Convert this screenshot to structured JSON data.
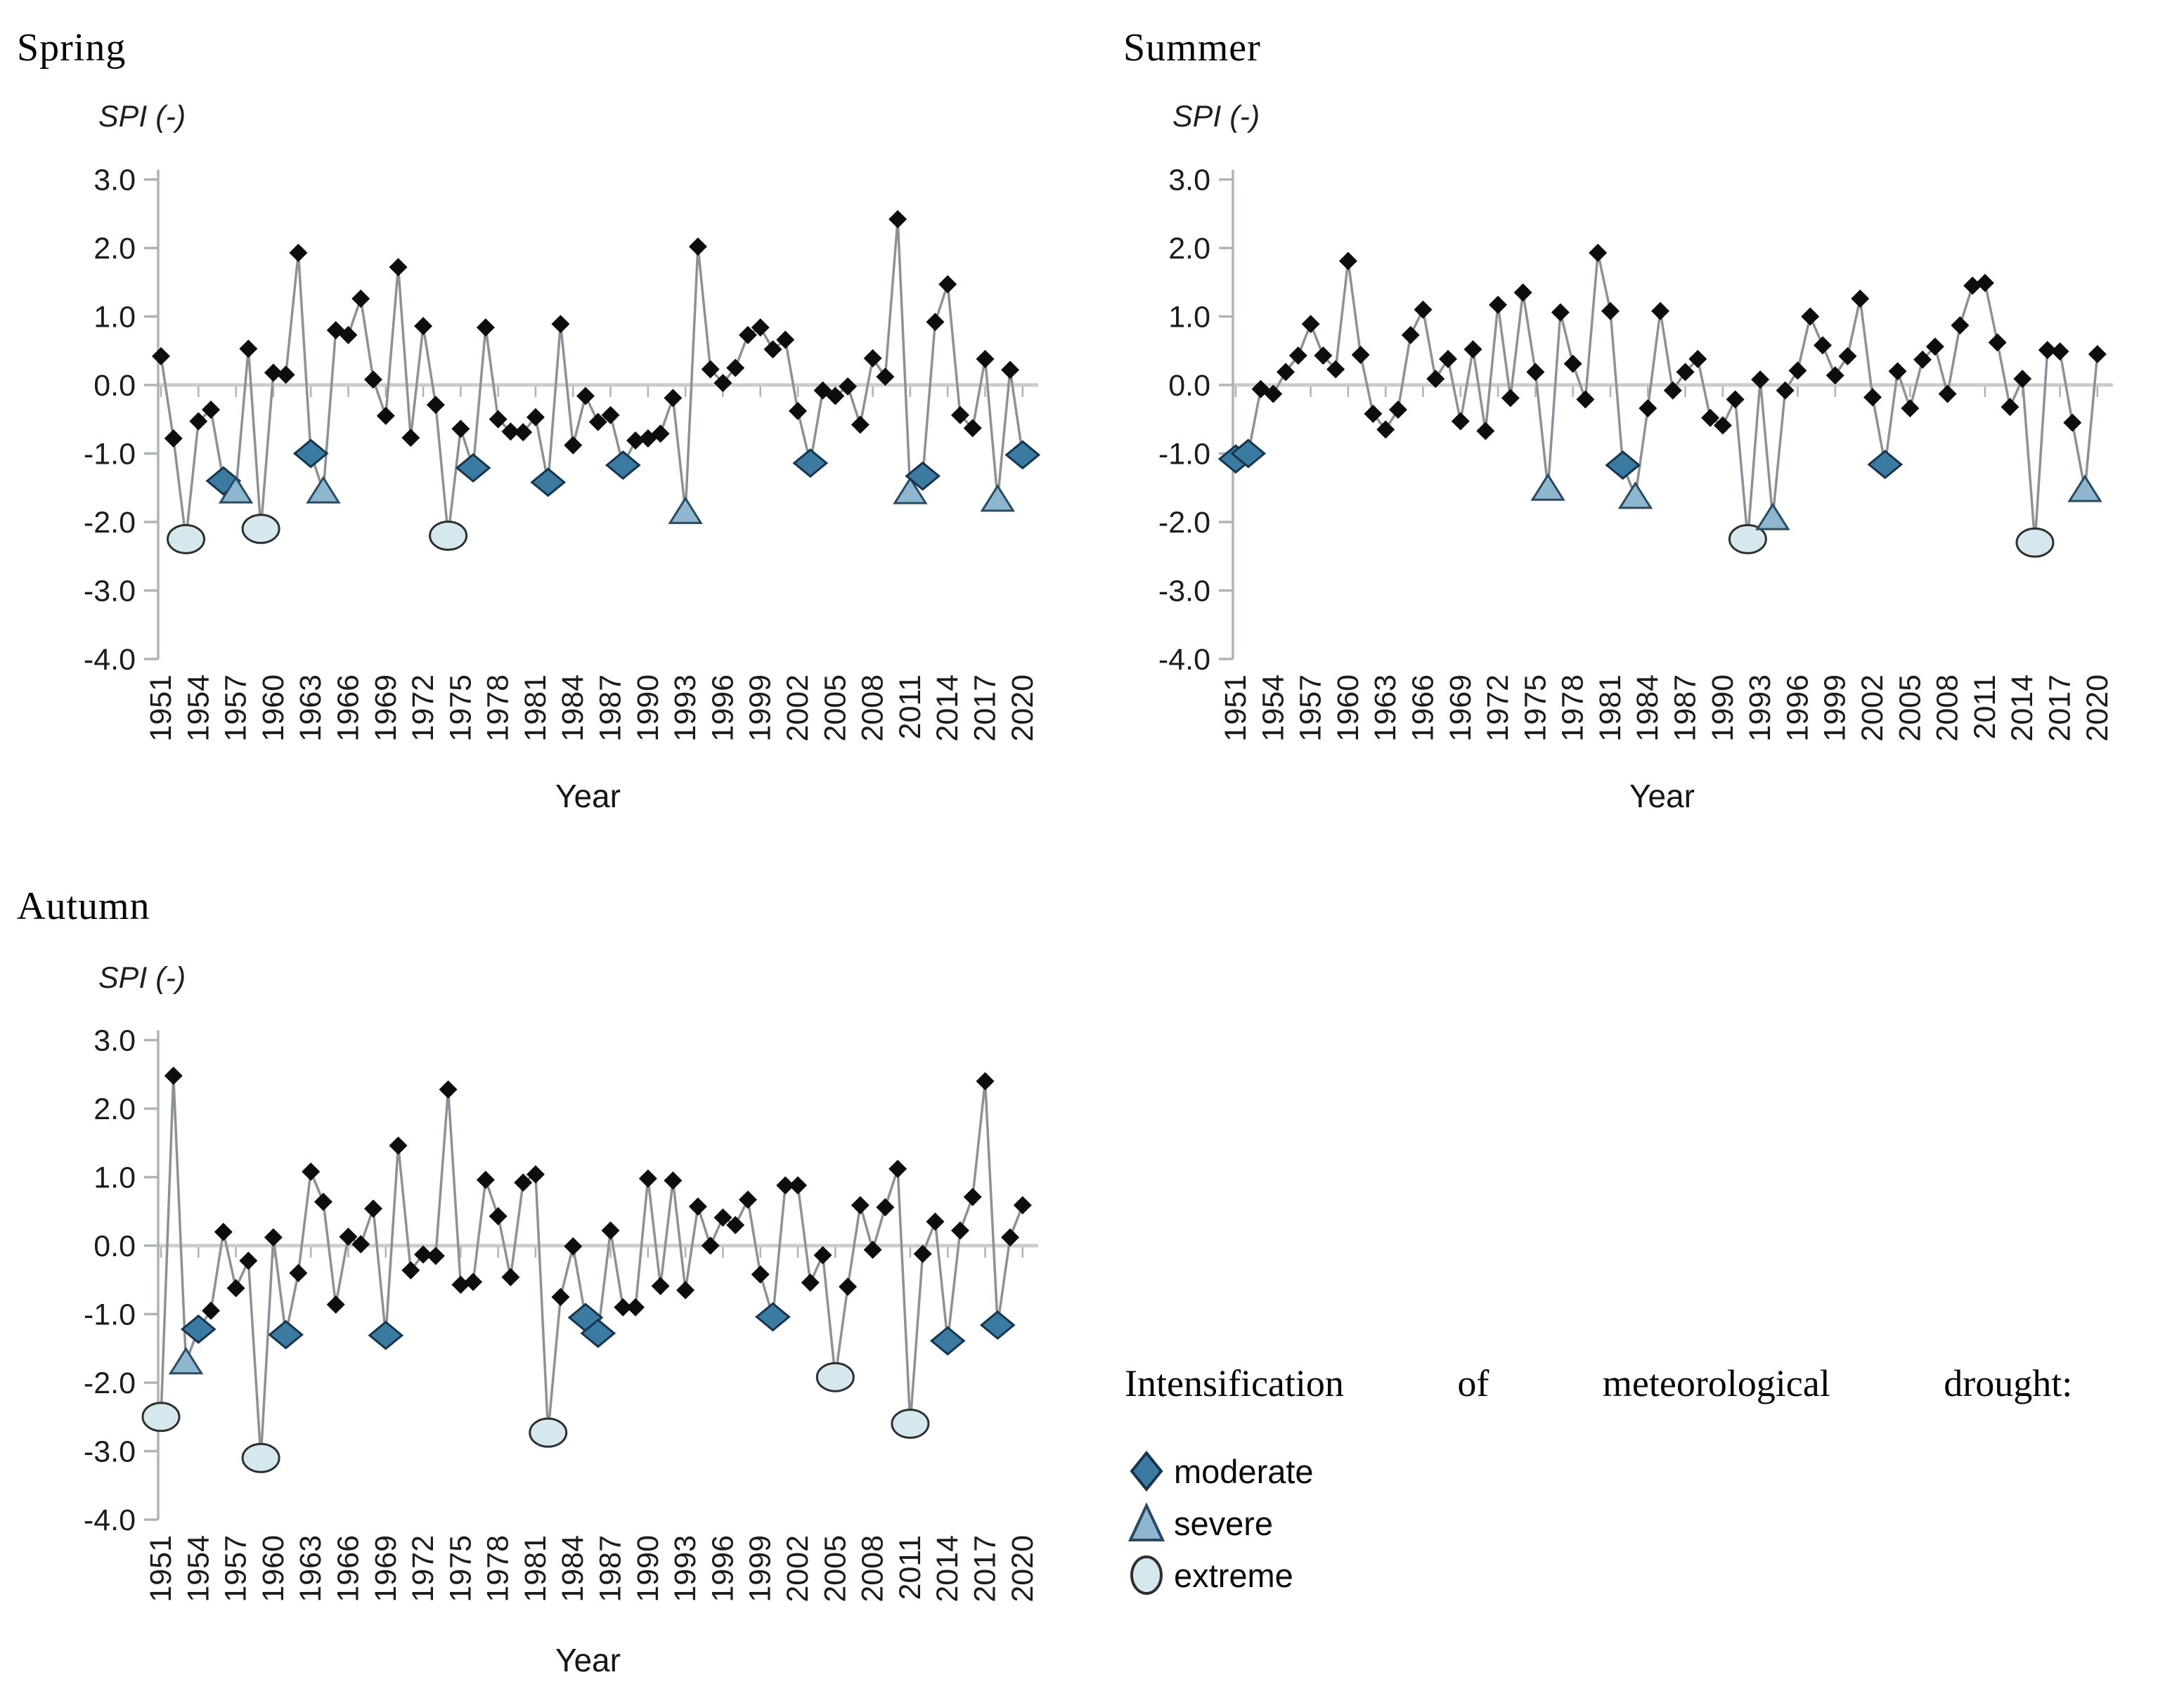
{
  "page": {
    "background": "#ffffff"
  },
  "colors": {
    "series_line": "#8b9194",
    "black_point": "#0d0d0d",
    "axis": "#aeb4b6",
    "zero_line": "#c9cdcc",
    "tick_text": "#1c1c1c",
    "moderate_fill": "#3b7ba2",
    "moderate_outline": "#16344c",
    "severe_fill": "#8fb6cf",
    "severe_outline": "#2a4a62",
    "extreme_fill": "#d4e8ee",
    "extreme_outline": "#2e2e2e"
  },
  "legend": {
    "title": "Intensification of meteorological drought:",
    "items": [
      {
        "label": "moderate",
        "marker": "diamond-icon",
        "color": "#3b7ba2"
      },
      {
        "label": "severe",
        "marker": "triangle-icon",
        "color": "#8fb6cf"
      },
      {
        "label": "extreme",
        "marker": "circle-icon",
        "color": "#d4e8ee"
      }
    ]
  },
  "chart_data": [
    {
      "id": "spring",
      "type": "line",
      "title": "Spring",
      "ylabel": "SPI (-)",
      "xlabel": "Year",
      "ylim": [
        -4.0,
        3.0
      ],
      "yticks": [
        "3.0",
        "2.0",
        "1.0",
        "0.0",
        "-1.0",
        "-2.0",
        "-3.0",
        "-4.0"
      ],
      "x_start": 1951,
      "x_end": 2020,
      "xtick_labels": [
        "1951",
        "1954",
        "1957",
        "1960",
        "1963",
        "1966",
        "1969",
        "1972",
        "1975",
        "1978",
        "1981",
        "1984",
        "1987",
        "1990",
        "1993",
        "1996",
        "1999",
        "2002",
        "2005",
        "2008",
        "2011",
        "2014",
        "2017",
        "2020"
      ],
      "grid": false,
      "values": [
        0.42,
        -0.78,
        -2.25,
        -0.53,
        -0.36,
        -1.4,
        -1.55,
        0.53,
        -2.1,
        0.18,
        0.15,
        1.93,
        -1.0,
        -1.55,
        0.8,
        0.73,
        1.26,
        0.08,
        -0.45,
        1.72,
        -0.77,
        0.86,
        -0.29,
        -2.2,
        -0.64,
        -1.21,
        0.84,
        -0.5,
        -0.68,
        -0.69,
        -0.47,
        -1.42,
        0.89,
        -0.88,
        -0.16,
        -0.54,
        -0.44,
        -1.17,
        -0.81,
        -0.78,
        -0.71,
        -0.19,
        -1.85,
        2.02,
        0.23,
        0.03,
        0.25,
        0.73,
        0.84,
        0.52,
        0.66,
        -0.38,
        -1.14,
        -0.08,
        -0.16,
        -0.02,
        -0.58,
        0.39,
        0.12,
        2.42,
        -1.56,
        -1.33,
        0.92,
        1.47,
        -0.44,
        -0.63,
        0.38,
        -1.67,
        0.22,
        -1.02
      ],
      "drought_markers": {
        "1953": "extreme",
        "1956": "moderate",
        "1957": "severe",
        "1959": "extreme",
        "1963": "moderate",
        "1964": "severe",
        "1974": "extreme",
        "1976": "moderate",
        "1982": "moderate",
        "1988": "moderate",
        "1993": "severe",
        "2003": "moderate",
        "2011": "severe",
        "2012": "moderate",
        "2018": "severe",
        "2020": "moderate"
      }
    },
    {
      "id": "summer",
      "type": "line",
      "title": "Summer",
      "ylabel": "SPI (-)",
      "xlabel": "Year",
      "ylim": [
        -4.0,
        3.0
      ],
      "yticks": [
        "3.0",
        "2.0",
        "1.0",
        "0.0",
        "-1.0",
        "-2.0",
        "-3.0",
        "-4.0"
      ],
      "x_start": 1951,
      "x_end": 2020,
      "xtick_labels": [
        "1951",
        "1954",
        "1957",
        "1960",
        "1963",
        "1966",
        "1969",
        "1972",
        "1975",
        "1978",
        "1981",
        "1984",
        "1987",
        "1990",
        "1993",
        "1996",
        "1999",
        "2002",
        "2005",
        "2008",
        "2011",
        "2014",
        "2017",
        "2020"
      ],
      "grid": false,
      "values": [
        -1.08,
        -1.0,
        -0.06,
        -0.13,
        0.19,
        0.43,
        0.89,
        0.43,
        0.23,
        1.81,
        0.44,
        -0.42,
        -0.65,
        -0.36,
        0.73,
        1.1,
        0.09,
        0.38,
        -0.53,
        0.52,
        -0.67,
        1.17,
        -0.19,
        1.35,
        0.19,
        -1.51,
        1.06,
        0.31,
        -0.21,
        1.93,
        1.08,
        -1.17,
        -1.63,
        -0.34,
        1.08,
        -0.08,
        0.19,
        0.38,
        -0.48,
        -0.59,
        -0.21,
        -2.25,
        0.08,
        -1.94,
        -0.08,
        0.21,
        1.0,
        0.58,
        0.14,
        0.42,
        1.26,
        -0.18,
        -1.16,
        0.2,
        -0.34,
        0.37,
        0.56,
        -0.13,
        0.87,
        1.45,
        1.49,
        0.62,
        -0.32,
        0.09,
        -2.3,
        0.51,
        0.49,
        -0.55,
        -1.53,
        0.45
      ],
      "drought_markers": {
        "1951": "moderate",
        "1952": "moderate",
        "1976": "severe",
        "1982": "moderate",
        "1983": "severe",
        "1992": "extreme",
        "1994": "severe",
        "2003": "moderate",
        "2015": "extreme",
        "2019": "severe"
      }
    },
    {
      "id": "autumn",
      "type": "line",
      "title": "Autumn",
      "ylabel": "SPI (-)",
      "xlabel": "Year",
      "ylim": [
        -4.0,
        3.0
      ],
      "yticks": [
        "3.0",
        "2.0",
        "1.0",
        "0.0",
        "-1.0",
        "-2.0",
        "-3.0",
        "-4.0"
      ],
      "x_start": 1951,
      "x_end": 2020,
      "xtick_labels": [
        "1951",
        "1954",
        "1957",
        "1960",
        "1963",
        "1966",
        "1969",
        "1972",
        "1975",
        "1978",
        "1981",
        "1984",
        "1987",
        "1990",
        "1993",
        "1996",
        "1999",
        "2002",
        "2005",
        "2008",
        "2011",
        "2014",
        "2017",
        "2020"
      ],
      "grid": false,
      "values": [
        -2.5,
        2.48,
        -1.7,
        -1.22,
        -0.95,
        0.2,
        -0.62,
        -0.22,
        -3.1,
        0.12,
        -1.3,
        -0.4,
        1.08,
        0.64,
        -0.86,
        0.13,
        0.02,
        0.54,
        -1.31,
        1.46,
        -0.36,
        -0.13,
        -0.15,
        2.28,
        -0.57,
        -0.53,
        0.96,
        0.43,
        -0.46,
        0.92,
        1.04,
        -2.73,
        -0.75,
        -0.01,
        -1.05,
        -1.28,
        0.22,
        -0.9,
        -0.9,
        0.98,
        -0.59,
        0.95,
        -0.65,
        0.57,
        0.0,
        0.41,
        0.3,
        0.67,
        -0.42,
        -1.04,
        0.88,
        0.88,
        -0.54,
        -0.14,
        -1.92,
        -0.6,
        0.59,
        -0.06,
        0.56,
        1.12,
        -2.6,
        -0.12,
        0.35,
        -1.39,
        0.22,
        0.71,
        2.4,
        -1.16,
        0.12,
        0.59
      ],
      "drought_markers": {
        "1951": "extreme",
        "1953": "severe",
        "1954": "moderate",
        "1959": "extreme",
        "1961": "moderate",
        "1969": "moderate",
        "1982": "extreme",
        "1985": "moderate",
        "1986": "moderate",
        "2000": "moderate",
        "2005": "extreme",
        "2011": "extreme",
        "2014": "moderate",
        "2018": "moderate"
      }
    }
  ]
}
